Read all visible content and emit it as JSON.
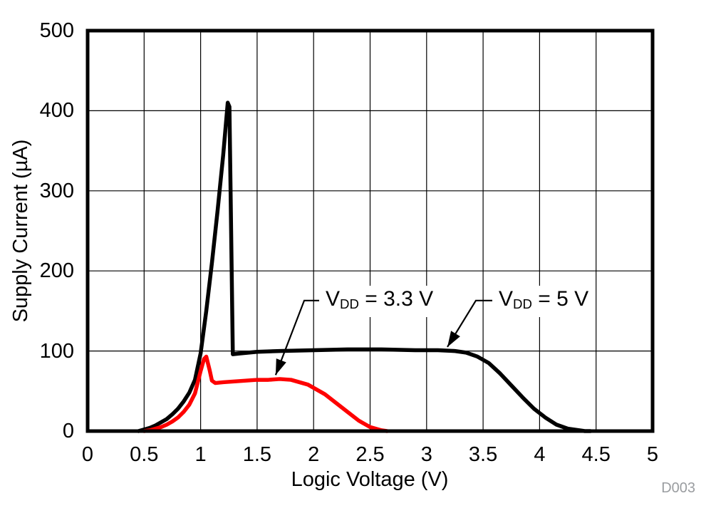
{
  "figure": {
    "code_label": "D003"
  },
  "chart_data": {
    "type": "line",
    "title": "",
    "xlabel": "Logic Voltage (V)",
    "ylabel": "Supply Current (µA)",
    "xlim": [
      0,
      5
    ],
    "ylim": [
      0,
      500
    ],
    "grid": true,
    "legend_position": "inline-annotations",
    "x_ticks": [
      0,
      0.5,
      1,
      1.5,
      2,
      2.5,
      3,
      3.5,
      4,
      4.5,
      5
    ],
    "x_tick_labels": [
      "0",
      "0.5",
      "1",
      "1.5",
      "2",
      "2.5",
      "3",
      "3.5",
      "4",
      "4.5",
      "5"
    ],
    "y_ticks": [
      0,
      100,
      200,
      300,
      400,
      500
    ],
    "y_tick_labels": [
      "0",
      "100",
      "200",
      "300",
      "400",
      "500"
    ],
    "series": [
      {
        "name": "VDD = 5 V",
        "color": "#000000",
        "points": [
          [
            0.45,
            0
          ],
          [
            0.5,
            2
          ],
          [
            0.55,
            4
          ],
          [
            0.6,
            7
          ],
          [
            0.65,
            11
          ],
          [
            0.7,
            15
          ],
          [
            0.75,
            21
          ],
          [
            0.8,
            28
          ],
          [
            0.85,
            37
          ],
          [
            0.9,
            48
          ],
          [
            0.95,
            64
          ],
          [
            1.0,
            97
          ],
          [
            1.05,
            150
          ],
          [
            1.1,
            210
          ],
          [
            1.15,
            275
          ],
          [
            1.2,
            345
          ],
          [
            1.24,
            410
          ],
          [
            1.255,
            405
          ],
          [
            1.285,
            96
          ],
          [
            1.35,
            97
          ],
          [
            1.5,
            99
          ],
          [
            1.7,
            100
          ],
          [
            2.0,
            101
          ],
          [
            2.3,
            102
          ],
          [
            2.6,
            102
          ],
          [
            2.9,
            101
          ],
          [
            3.1,
            101
          ],
          [
            3.25,
            100
          ],
          [
            3.35,
            98
          ],
          [
            3.45,
            93
          ],
          [
            3.55,
            85
          ],
          [
            3.65,
            72
          ],
          [
            3.75,
            57
          ],
          [
            3.85,
            42
          ],
          [
            3.95,
            28
          ],
          [
            4.05,
            17
          ],
          [
            4.15,
            8
          ],
          [
            4.25,
            3
          ],
          [
            4.35,
            1
          ],
          [
            4.4,
            0
          ],
          [
            4.45,
            0
          ]
        ]
      },
      {
        "name": "VDD = 3.3 V",
        "color": "#fe0000",
        "points": [
          [
            0.5,
            0
          ],
          [
            0.55,
            1
          ],
          [
            0.6,
            3
          ],
          [
            0.65,
            5
          ],
          [
            0.7,
            8
          ],
          [
            0.75,
            12
          ],
          [
            0.8,
            17
          ],
          [
            0.85,
            24
          ],
          [
            0.9,
            33
          ],
          [
            0.95,
            47
          ],
          [
            1.0,
            75
          ],
          [
            1.03,
            90
          ],
          [
            1.05,
            93
          ],
          [
            1.08,
            76
          ],
          [
            1.1,
            63
          ],
          [
            1.13,
            60
          ],
          [
            1.2,
            61
          ],
          [
            1.3,
            62
          ],
          [
            1.4,
            63
          ],
          [
            1.5,
            64
          ],
          [
            1.6,
            64
          ],
          [
            1.7,
            65
          ],
          [
            1.8,
            64
          ],
          [
            1.85,
            62
          ],
          [
            1.95,
            58
          ],
          [
            2.0,
            54
          ],
          [
            2.1,
            46
          ],
          [
            2.2,
            35
          ],
          [
            2.3,
            24
          ],
          [
            2.4,
            13
          ],
          [
            2.5,
            5
          ],
          [
            2.6,
            1
          ],
          [
            2.65,
            0
          ]
        ]
      }
    ],
    "annotations": [
      {
        "v": "V",
        "sub": "DD",
        "rest": " = 3.3 V",
        "lead_from_x": 2.13,
        "elbow_x": 1.917,
        "lead_y": 163,
        "tip_x": 1.664,
        "tip_y": 70
      },
      {
        "v": "V",
        "sub": "DD",
        "rest": " = 5 V",
        "lead_from_x": 3.67,
        "elbow_x": 3.436,
        "lead_y": 163,
        "tip_x": 3.184,
        "tip_y": 105
      }
    ]
  }
}
